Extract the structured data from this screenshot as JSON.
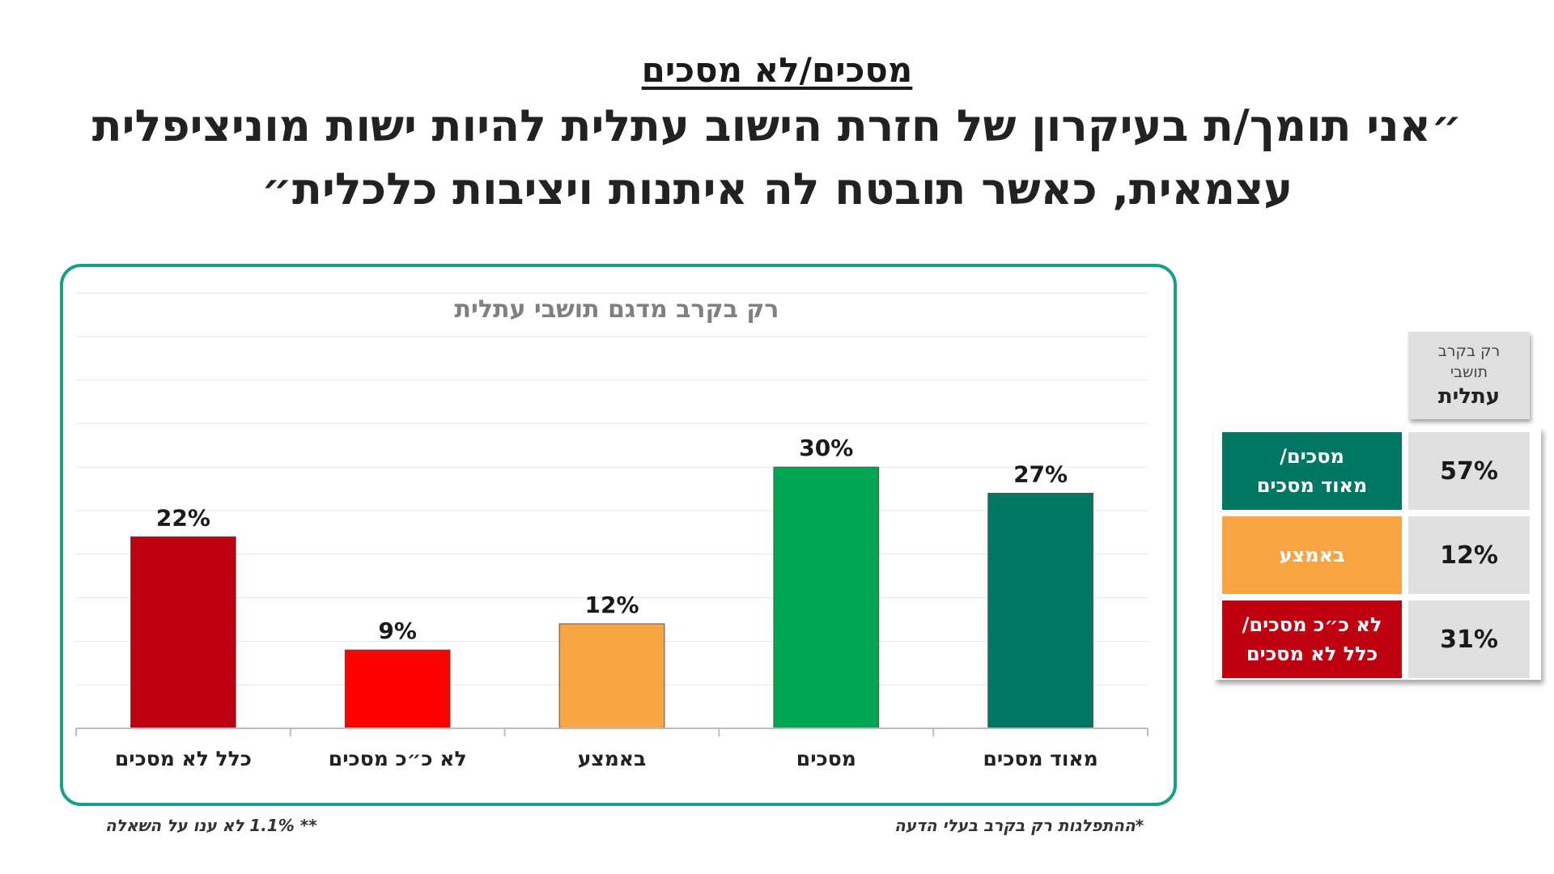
{
  "header": {
    "label": "מסכים/לא מסכים",
    "title_line1": "״אני תומך/ת בעיקרון של חזרת הישוב עתלית להיות ישות מוניציפלית",
    "title_line2": "עצמאית, כאשר תובטח לה איתנות ויציבות כלכלית״"
  },
  "chart_data": {
    "type": "bar",
    "title": "רק בקרב מדגם תושבי עתלית",
    "categories": [
      "מאוד מסכים",
      "מסכים",
      "באמצע",
      "לא כ״כ מסכים",
      "כלל לא מסכים"
    ],
    "values": [
      27,
      30,
      12,
      9,
      22
    ],
    "data_labels": [
      "27%",
      "30%",
      "12%",
      "9%",
      "22%"
    ],
    "colors": [
      "#007763",
      "#00a651",
      "#f9a442",
      "#ff0000",
      "#bf0011"
    ],
    "xlabel": "",
    "ylabel": "",
    "ylim": [
      0,
      50
    ],
    "grid": true,
    "axis_direction": "rtl"
  },
  "summary_table": {
    "header_small": "רק בקרב תושבי",
    "header_bold": "עתלית",
    "rows": [
      {
        "label_line1": "מסכים/",
        "label_line2": "מאוד מסכים",
        "value": "57%",
        "color": "#007763"
      },
      {
        "label_line1": "באמצע",
        "label_line2": "",
        "value": "12%",
        "color": "#f9a442"
      },
      {
        "label_line1": "לא כ״כ מסכים/",
        "label_line2": "כלל לא מסכים",
        "value": "31%",
        "color": "#bf0011"
      }
    ]
  },
  "footnotes": {
    "left": "** 1.1% לא ענו על השאלה",
    "right": "*ההתפלגות רק בקרב בעלי הדעה"
  }
}
